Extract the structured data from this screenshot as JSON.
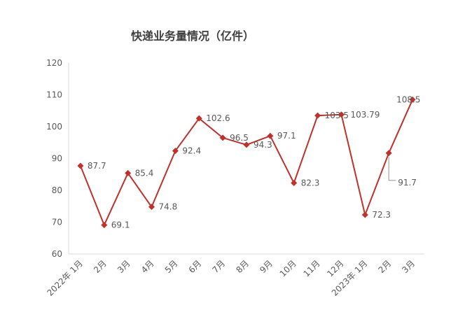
{
  "chart_data": {
    "type": "line",
    "title": "快递业务量情况（亿件）",
    "categories": [
      "2022年 1月",
      "2月",
      "3月",
      "4月",
      "5月",
      "6月",
      "7月",
      "8月",
      "9月",
      "10月",
      "11月",
      "12月",
      "2023年 1月",
      "2月",
      "3月"
    ],
    "values": [
      87.7,
      69.1,
      85.4,
      74.8,
      92.4,
      102.6,
      96.5,
      94.3,
      97.1,
      82.3,
      103.5,
      103.79,
      72.3,
      91.7,
      108.5
    ],
    "data_labels": [
      "87.7",
      "69.1",
      "85.4",
      "74.8",
      "92.4",
      "102.6",
      "96.5",
      "94.3",
      "97.1",
      "82.3",
      "103.5",
      "103.79",
      "72.3",
      "91.7",
      "108.5"
    ],
    "ylim": [
      60,
      120
    ],
    "yticks": [
      "60",
      "70",
      "80",
      "90",
      "100",
      "110",
      "120"
    ],
    "grid": false,
    "series_color": "#c0312b",
    "legend": "none"
  }
}
